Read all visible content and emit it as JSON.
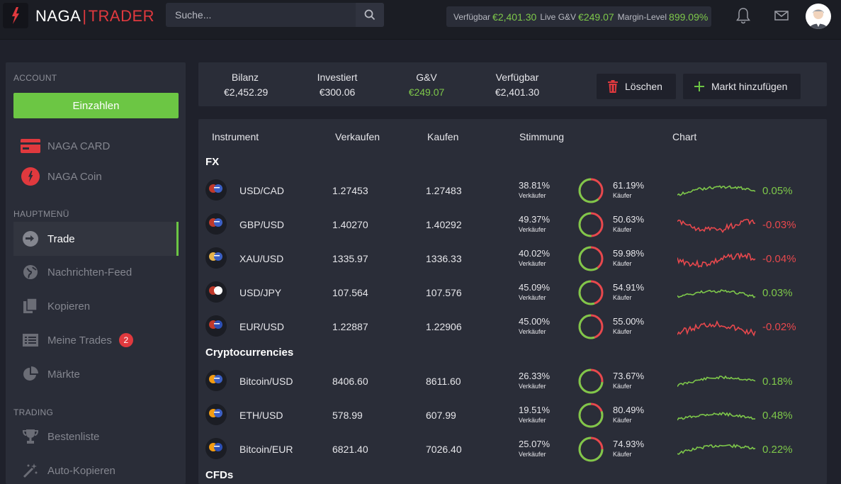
{
  "header": {
    "logo_left": "NAGA",
    "logo_sep": "|",
    "logo_right": "TRADER",
    "search_placeholder": "Suche...",
    "available_label": "Verfügbar",
    "available_value": "€2,401.30",
    "pnl_label": "Live G&V",
    "pnl_value": "€249.07",
    "margin_label": "Margin-Level",
    "margin_value": "899.09%"
  },
  "sidebar": {
    "account_title": "ACCOUNT",
    "deposit_label": "Einzahlen",
    "naga_card": "NAGA CARD",
    "naga_coin": "NAGA Coin",
    "main_title": "HAUPTMENÜ",
    "trade": "Trade",
    "news": "Nachrichten-Feed",
    "copy": "Kopieren",
    "my_trades": "Meine Trades",
    "my_trades_badge": "2",
    "markets": "Märkte",
    "trading_title": "TRADING",
    "leaderboard": "Bestenliste",
    "autocopy": "Auto-Kopieren"
  },
  "summary": {
    "balance_label": "Bilanz",
    "balance_value": "€2,452.29",
    "invested_label": "Investiert",
    "invested_value": "€300.06",
    "pnl_label": "G&V",
    "pnl_value": "€249.07",
    "available_label": "Verfügbar",
    "available_value": "€2,401.30",
    "delete_label": "Löschen",
    "add_market_label": "Markt hinzufügen"
  },
  "table": {
    "col_instrument": "Instrument",
    "col_sell": "Verkaufen",
    "col_buy": "Kaufen",
    "col_sentiment": "Stimmung",
    "col_chart": "Chart",
    "seller_word": "Verkäufer",
    "buyer_word": "Käufer",
    "groups": [
      {
        "name": "FX",
        "rows": [
          {
            "symbol": "USD/CAD",
            "sell": "1.27453",
            "buy": "1.27483",
            "sell_pct": "38.81%",
            "buy_pct": "61.19%",
            "buy_share": 0.6119,
            "change": "0.05%",
            "trend": "up"
          },
          {
            "symbol": "GBP/USD",
            "sell": "1.40270",
            "buy": "1.40292",
            "sell_pct": "49.37%",
            "buy_pct": "50.63%",
            "buy_share": 0.5063,
            "change": "-0.03%",
            "trend": "down"
          },
          {
            "symbol": "XAU/USD",
            "sell": "1335.97",
            "buy": "1336.33",
            "sell_pct": "40.02%",
            "buy_pct": "59.98%",
            "buy_share": 0.5998,
            "change": "-0.04%",
            "trend": "down"
          },
          {
            "symbol": "USD/JPY",
            "sell": "107.564",
            "buy": "107.576",
            "sell_pct": "45.09%",
            "buy_pct": "54.91%",
            "buy_share": 0.5491,
            "change": "0.03%",
            "trend": "up"
          },
          {
            "symbol": "EUR/USD",
            "sell": "1.22887",
            "buy": "1.22906",
            "sell_pct": "45.00%",
            "buy_pct": "55.00%",
            "buy_share": 0.55,
            "change": "-0.02%",
            "trend": "down"
          }
        ]
      },
      {
        "name": "Cryptocurrencies",
        "rows": [
          {
            "symbol": "Bitcoin/USD",
            "sell": "8406.60",
            "buy": "8611.60",
            "sell_pct": "26.33%",
            "buy_pct": "73.67%",
            "buy_share": 0.7367,
            "change": "0.18%",
            "trend": "up"
          },
          {
            "symbol": "ETH/USD",
            "sell": "578.99",
            "buy": "607.99",
            "sell_pct": "19.51%",
            "buy_pct": "80.49%",
            "buy_share": 0.8049,
            "change": "0.48%",
            "trend": "up"
          },
          {
            "symbol": "Bitcoin/EUR",
            "sell": "6821.40",
            "buy": "7026.40",
            "sell_pct": "25.07%",
            "buy_pct": "74.93%",
            "buy_share": 0.7493,
            "change": "0.22%",
            "trend": "up"
          }
        ]
      },
      {
        "name": "CFDs",
        "rows": []
      }
    ]
  },
  "colors": {
    "green": "#7ec84a",
    "red": "#e8484d",
    "panel": "#2a2d38",
    "background": "#1f212b"
  }
}
